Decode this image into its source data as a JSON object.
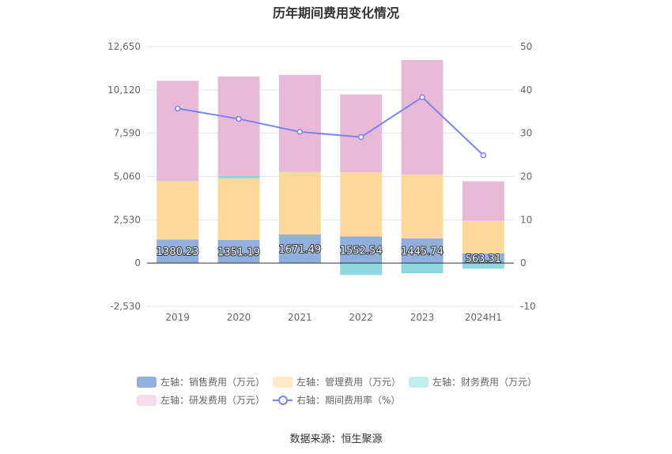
{
  "chart_data": {
    "type": "bar",
    "title": "历年期间费用变化情况",
    "categories": [
      "2019",
      "2020",
      "2021",
      "2022",
      "2023",
      "2024H1"
    ],
    "left_axis": {
      "ylim": [
        -2530,
        12650
      ],
      "ticks": [
        12650,
        10120,
        7590,
        5060,
        2530,
        0,
        -2530
      ],
      "tick_labels": [
        "12,650",
        "10,120",
        "7,590",
        "5,060",
        "2,530",
        "0",
        "-2,530"
      ]
    },
    "right_axis": {
      "ylim": [
        -10,
        50
      ],
      "ticks": [
        50,
        40,
        30,
        20,
        10,
        0,
        -10
      ],
      "tick_labels": [
        "50",
        "40",
        "30",
        "20",
        "10",
        "0",
        "-10"
      ]
    },
    "series": [
      {
        "name": "左轴：销售费用（万元）",
        "axis": "left",
        "color": "#8fb0dc",
        "values": [
          1380.23,
          1351.19,
          1671.49,
          1552.54,
          1445.74,
          563.31
        ]
      },
      {
        "name": "左轴：管理费用（万元）",
        "axis": "left",
        "color": "#ffd99c",
        "values": [
          3400,
          3600,
          3650,
          3750,
          3720,
          1900
        ]
      },
      {
        "name": "左轴：财务费用（万元）",
        "axis": "left",
        "color": "#8dd8de",
        "values": [
          20,
          150,
          20,
          -700,
          -600,
          -330
        ]
      },
      {
        "name": "左轴：研发费用（万元）",
        "axis": "left",
        "color": "#e8bad8",
        "values": [
          5850,
          5800,
          5650,
          4550,
          6700,
          2320
        ]
      },
      {
        "name": "右轴：期间费用率（%）",
        "axis": "right",
        "type": "line",
        "color": "#7b83ee",
        "values": [
          35.7,
          33.3,
          30.3,
          29.1,
          38.3,
          24.9
        ]
      }
    ],
    "data_labels": [
      "1380.23",
      "1351.19",
      "1671.49",
      "1552.54",
      "1445.74",
      "563.31"
    ],
    "legend_position": "bottom",
    "source": "数据来源：恒生聚源"
  }
}
